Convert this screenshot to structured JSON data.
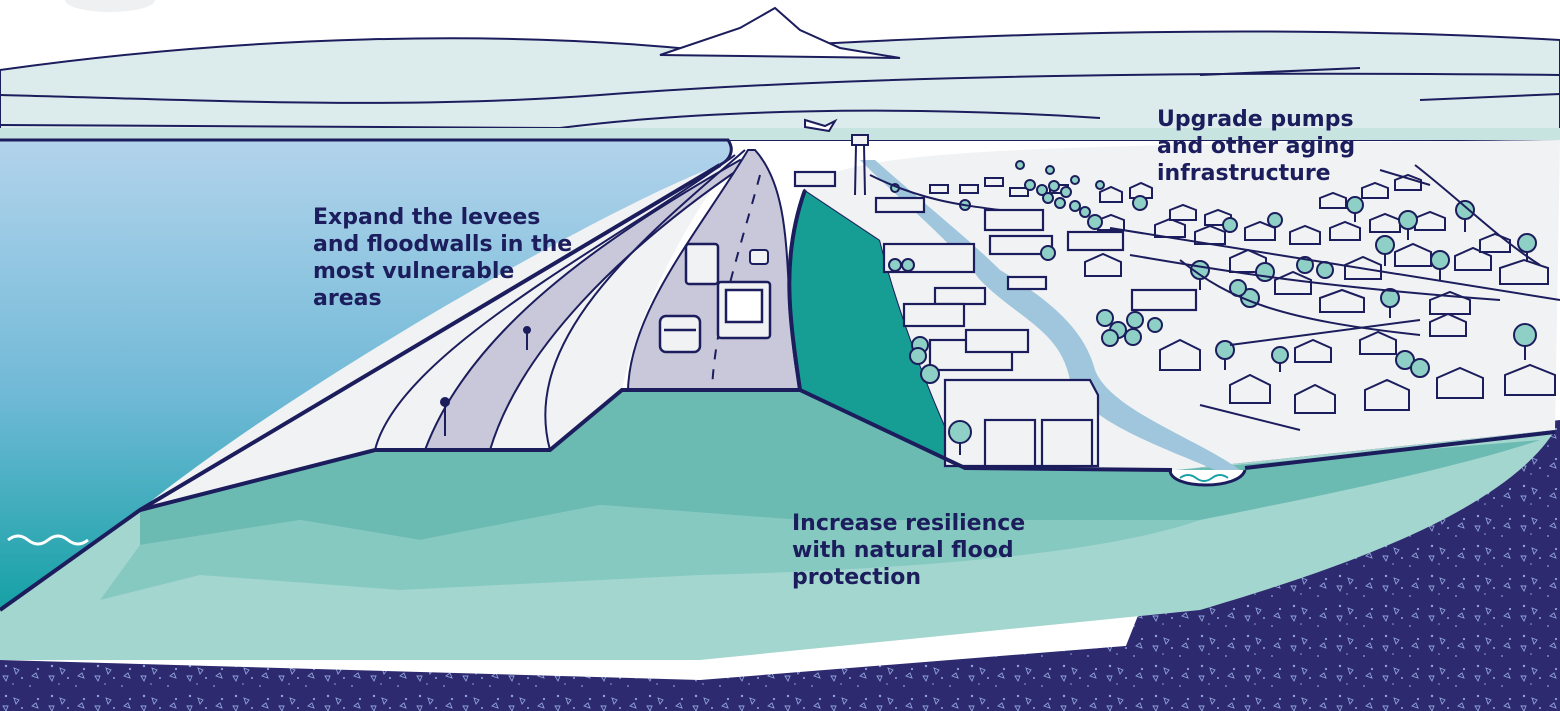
{
  "callouts": {
    "levees": "Expand the levees\nand floodwalls in the\nmost vulnerable\nareas",
    "pumps": "Upgrade pumps\nand other aging\ninfrastructure",
    "natural": "Increase resilience\nwith natural flood\nprotection"
  },
  "colors": {
    "ink": "#1c1d5c",
    "sky": "#ffffff",
    "hills_light": "#dcecec",
    "water_top": "#a9cbe8",
    "water_bottom": "#16a1a6",
    "levee_fill": "#f1f2f4",
    "road": "#c9c7da",
    "berm_dark": "#6cbbb3",
    "berm_mid": "#86c9c1",
    "berm_light": "#a3d6cf",
    "teal_slope": "#169e94",
    "bedrock": "#2e2a70",
    "river": "#9fc6dc",
    "tree_fill": "#8ed0c5"
  }
}
